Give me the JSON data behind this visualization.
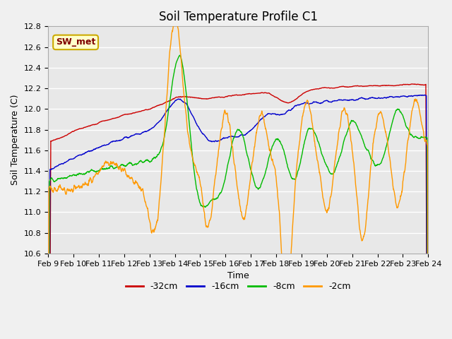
{
  "title": "Soil Temperature Profile C1",
  "xlabel": "Time",
  "ylabel": "Soil Temperature (C)",
  "ylim": [
    10.6,
    12.8
  ],
  "yticks": [
    10.6,
    10.8,
    11.0,
    11.2,
    11.4,
    11.6,
    11.8,
    12.0,
    12.2,
    12.4,
    12.6,
    12.8
  ],
  "num_points": 1440,
  "colors": {
    "-32cm": "#cc0000",
    "-16cm": "#0000cc",
    "-8cm": "#00bb00",
    "-2cm": "#ff9900"
  },
  "legend_labels": [
    "-32cm",
    "-16cm",
    "-8cm",
    "-2cm"
  ],
  "annotation_text": "SW_met",
  "annotation_facecolor": "#ffffcc",
  "annotation_edgecolor": "#ccaa00",
  "bg_color": "#e8e8e8",
  "grid_color": "white",
  "title_fontsize": 12,
  "axis_fontsize": 9,
  "tick_fontsize": 8,
  "legend_fontsize": 9,
  "line_width": 1.0
}
